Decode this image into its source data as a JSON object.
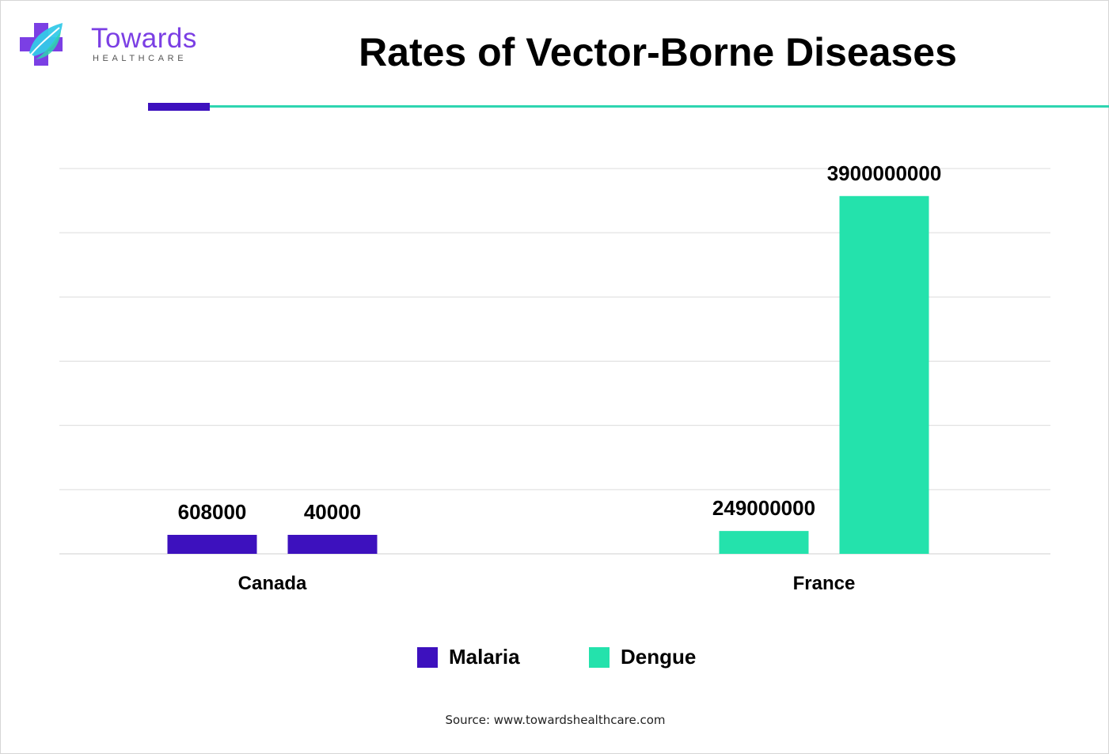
{
  "brand": {
    "name": "Towards",
    "tagline": "HEALTHCARE",
    "colors": {
      "purple": "#7b3fe4",
      "teal": "#2ed5b0",
      "cyan": "#35c9e8"
    }
  },
  "header": {
    "title": "Rates of Vector-Borne Diseases",
    "accent_colors": {
      "purple": "#3d11be",
      "teal": "#2ed5b0"
    }
  },
  "chart_data": {
    "type": "bar",
    "title": "Rates of Vector-Borne Diseases",
    "categories": [
      "Canada",
      "France"
    ],
    "bars": [
      {
        "category": "Canada",
        "series": "Malaria",
        "value": 608000,
        "label": "608000",
        "color": "#3d11be"
      },
      {
        "category": "Canada",
        "series": "Malaria",
        "value": 40000,
        "label": "40000",
        "color": "#3d11be"
      },
      {
        "category": "France",
        "series": "Dengue",
        "value": 249000000,
        "label": "249000000",
        "color": "#24e2ac"
      },
      {
        "category": "France",
        "series": "Dengue",
        "value": 3900000000,
        "label": "3900000000",
        "color": "#24e2ac"
      }
    ],
    "series": [
      {
        "name": "Malaria",
        "color": "#3d11be"
      },
      {
        "name": "Dengue",
        "color": "#24e2ac"
      }
    ],
    "min_bar_value": 300000000,
    "ylim": [
      0,
      4200000000
    ],
    "yticks_count": 6,
    "grid": true,
    "legend_position": "bottom"
  },
  "legend": {
    "items": [
      {
        "label": "Malaria",
        "color": "#3d11be"
      },
      {
        "label": "Dengue",
        "color": "#24e2ac"
      }
    ]
  },
  "footer": {
    "source": "Source: www.towardshealthcare.com"
  }
}
